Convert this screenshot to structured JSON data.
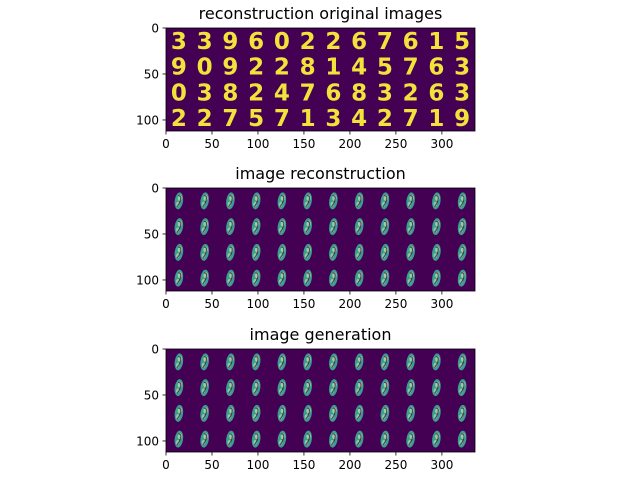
{
  "colors": {
    "background": "#440154",
    "bright": "#fde725",
    "mid": "#3bb8a0",
    "light": "#9fdc8e"
  },
  "chart_data": [
    {
      "type": "heatmap",
      "title": "reconstruction original images",
      "xlabel": "",
      "ylabel": "",
      "xlim": [
        0,
        336
      ],
      "ylim": [
        112,
        0
      ],
      "xticks": [
        0,
        50,
        100,
        150,
        200,
        250,
        300
      ],
      "yticks": [
        0,
        50,
        100
      ],
      "grid": false,
      "content": "digits",
      "rows": [
        [
          "3",
          "3",
          "9",
          "6",
          "0",
          "2",
          "2",
          "6",
          "7",
          "6",
          "1",
          "5"
        ],
        [
          "9",
          "0",
          "9",
          "2",
          "2",
          "8",
          "1",
          "4",
          "5",
          "7",
          "6",
          "3"
        ],
        [
          "0",
          "3",
          "8",
          "2",
          "4",
          "7",
          "6",
          "8",
          "3",
          "2",
          "6",
          "3"
        ],
        [
          "2",
          "2",
          "7",
          "5",
          "7",
          "1",
          "3",
          "4",
          "2",
          "7",
          "1",
          "9"
        ]
      ]
    },
    {
      "type": "heatmap",
      "title": "image reconstruction",
      "xlabel": "",
      "ylabel": "",
      "xlim": [
        0,
        336
      ],
      "ylim": [
        112,
        0
      ],
      "xticks": [
        0,
        50,
        100,
        150,
        200,
        250,
        300
      ],
      "yticks": [
        0,
        50,
        100
      ],
      "grid": false,
      "content": "blobs",
      "grid_size": [
        4,
        12
      ]
    },
    {
      "type": "heatmap",
      "title": "image generation",
      "xlabel": "",
      "ylabel": "",
      "xlim": [
        0,
        336
      ],
      "ylim": [
        112,
        0
      ],
      "xticks": [
        0,
        50,
        100,
        150,
        200,
        250,
        300
      ],
      "yticks": [
        0,
        50,
        100
      ],
      "grid": false,
      "content": "blobs",
      "grid_size": [
        4,
        12
      ]
    }
  ]
}
